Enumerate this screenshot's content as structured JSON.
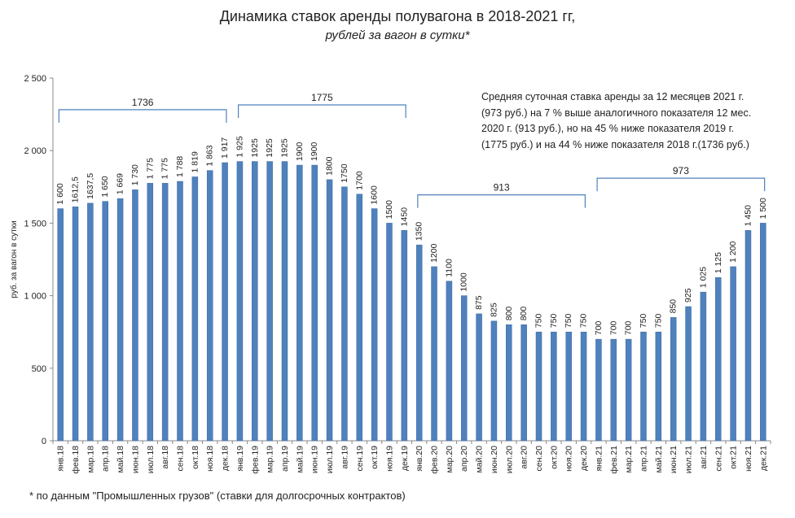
{
  "colors": {
    "bar": "#4f81bd",
    "bar_stroke": "#3b6a9e",
    "axis": "#888888",
    "bracket": "#4f81bd"
  },
  "chart_data": {
    "type": "bar",
    "title": "Динамика ставок аренды полувагона в 2018-2021 гг,",
    "subtitle": "рублей за вагон в сутки*",
    "ylabel": "руб. за вагон в сутки",
    "xlabel": "",
    "ylim": [
      0,
      2500
    ],
    "yticks": [
      0,
      500,
      1000,
      1500,
      2000,
      2500
    ],
    "ytick_labels": [
      "0",
      "500",
      "1 000",
      "1 500",
      "2 000",
      "2 500"
    ],
    "grid": false,
    "categories": [
      "янв.18",
      "фев.18",
      "мар.18",
      "апр.18",
      "май.18",
      "июн.18",
      "июл.18",
      "авг.18",
      "сен.18",
      "окт.18",
      "ноя.18",
      "дек.18",
      "янв.19",
      "фев.19",
      "мар.19",
      "апр.19",
      "май.19",
      "июн.19",
      "июл.19",
      "авг.19",
      "сен.19",
      "окт.19",
      "ноя.19",
      "дек.19",
      "янв.20",
      "фев.20",
      "мар.20",
      "апр.20",
      "май.20",
      "июн.20",
      "июл.20",
      "авг.20",
      "сен.20",
      "окт.20",
      "ноя.20",
      "дек.20",
      "янв.21",
      "фев.21",
      "мар.21",
      "апр.21",
      "май.21",
      "июн.21",
      "июл.21",
      "авг.21",
      "сен.21",
      "окт.21",
      "ноя.21",
      "дек.21"
    ],
    "values": [
      1600,
      1612.5,
      1637.5,
      1650,
      1669,
      1730,
      1775,
      1775,
      1788,
      1819,
      1863,
      1917,
      1925,
      1925,
      1925,
      1925,
      1900,
      1900,
      1800,
      1750,
      1700,
      1600,
      1500,
      1450,
      1350,
      1200,
      1100,
      1000,
      875,
      825,
      800,
      800,
      750,
      750,
      750,
      750,
      700,
      700,
      700,
      750,
      750,
      850,
      925,
      1025,
      1125,
      1200,
      1450,
      1500
    ],
    "value_labels": [
      "1 600",
      "1612,5",
      "1637,5",
      "1 650",
      "1 669",
      "1 730",
      "1 775",
      "1 775",
      "1 788",
      "1 819",
      "1 863",
      "1 917",
      "1 925",
      "1925",
      "1925",
      "1925",
      "1900",
      "1900",
      "1800",
      "1750",
      "1700",
      "1600",
      "1500",
      "1450",
      "1350",
      "1200",
      "1100",
      "1000",
      "875",
      "825",
      "800",
      "800",
      "750",
      "750",
      "750",
      "750",
      "700",
      "700",
      "700",
      "750",
      "750",
      "850",
      "925",
      "1 025",
      "1 125",
      "1 200",
      "1 450",
      "1 500"
    ],
    "annotations": {
      "brackets": [
        {
          "label": "1736",
          "from_index": 0,
          "to_index": 11,
          "level": 2282
        },
        {
          "label": "1775",
          "from_index": 12,
          "to_index": 23,
          "level": 2315
        },
        {
          "label": "913",
          "from_index": 24,
          "to_index": 35,
          "level": 1695
        },
        {
          "label": "973",
          "from_index": 36,
          "to_index": 47,
          "level": 1810
        }
      ],
      "note_lines": [
        "Средняя суточная ставка аренды за 12 месяцев 2021 г.",
        "(973 руб.) на 7 % выше аналогичного показателя 12 мес.",
        "2020 г. (913 руб.), но на 45 % ниже показателя 2019 г.",
        "(1775 руб.) и на 44 % ниже показателя 2018 г.(1736 руб.)"
      ]
    }
  },
  "footnote": "* по данным \"Промышленных грузов\" (ставки для долгосрочных контрактов)"
}
